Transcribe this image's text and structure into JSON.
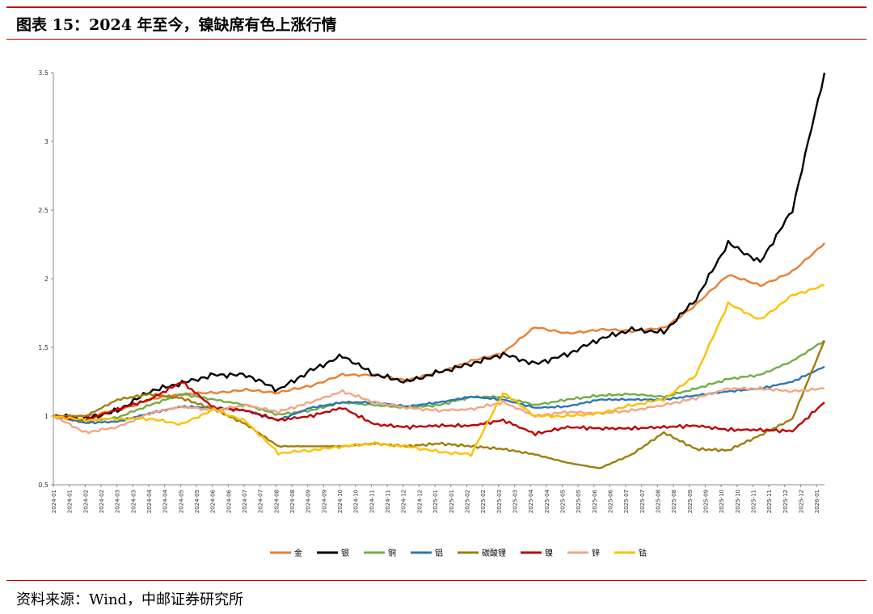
{
  "header": {
    "title": "图表 15：2024 年至今，镍缺席有色上涨行情"
  },
  "footer": {
    "source": "资料来源：Wind，中邮证券研究所"
  },
  "chart_data": {
    "type": "line",
    "title": "",
    "xlabel": "",
    "ylabel": "",
    "ylim": [
      0.5,
      3.5
    ],
    "yticks": [
      0.5,
      1,
      1.5,
      2,
      2.5,
      3,
      3.5
    ],
    "ytick_labels": [
      "0.5",
      "1",
      "1.5",
      "2",
      "2.5",
      "3",
      "3.5"
    ],
    "x_dates": [
      "2024-01",
      "2024-02",
      "2024-03",
      "2024-04",
      "2024-05",
      "2024-06",
      "2024-07",
      "2024-08",
      "2024-09",
      "2024-10",
      "2024-11",
      "2024-12",
      "2025-01",
      "2025-02",
      "2025-03",
      "2025-04",
      "2025-05",
      "2025-06",
      "2025-07",
      "2025-08",
      "2025-09",
      "2025-10",
      "2025-11",
      "2025-12",
      "2026-01"
    ],
    "xtick_labels": [
      "2024-01",
      "2024-01",
      "2024-02",
      "2024-02",
      "2024-03",
      "2024-03",
      "2024-04",
      "2024-04",
      "2024-05",
      "2024-05",
      "2024-06",
      "2024-06",
      "2024-07",
      "2024-07",
      "2024-08",
      "2024-08",
      "2024-09",
      "2024-09",
      "2024-10",
      "2024-10",
      "2024-11",
      "2024-11",
      "2024-12",
      "2024-12",
      "2025-01",
      "2025-01",
      "2025-02",
      "2025-02",
      "2025-03",
      "2025-03",
      "2025-04",
      "2025-04",
      "2025-05",
      "2025-05",
      "2025-06",
      "2025-06",
      "2025-07",
      "2025-07",
      "2025-08",
      "2025-08",
      "2025-09",
      "2025-09",
      "2025-10",
      "2025-10",
      "2025-11",
      "2025-11",
      "2025-12",
      "2025-12",
      "2026-01"
    ],
    "grid": false,
    "legend_position": "bottom",
    "series": [
      {
        "name": "金",
        "color": "#ED7D31",
        "values": [
          1.0,
          1.0,
          1.04,
          1.12,
          1.16,
          1.17,
          1.19,
          1.17,
          1.22,
          1.3,
          1.3,
          1.26,
          1.32,
          1.4,
          1.46,
          1.65,
          1.6,
          1.63,
          1.62,
          1.64,
          1.81,
          2.03,
          1.95,
          2.05,
          2.26
        ]
      },
      {
        "name": "银",
        "color": "#000000",
        "values": [
          1.0,
          0.98,
          1.04,
          1.18,
          1.24,
          1.3,
          1.3,
          1.19,
          1.33,
          1.44,
          1.3,
          1.25,
          1.32,
          1.38,
          1.45,
          1.38,
          1.45,
          1.56,
          1.63,
          1.61,
          1.85,
          2.26,
          2.12,
          2.5,
          3.5
        ]
      },
      {
        "name": "铜",
        "color": "#70AD47",
        "values": [
          1.0,
          0.96,
          0.99,
          1.08,
          1.16,
          1.12,
          1.08,
          1.01,
          1.04,
          1.1,
          1.08,
          1.06,
          1.08,
          1.14,
          1.14,
          1.08,
          1.12,
          1.15,
          1.16,
          1.14,
          1.2,
          1.27,
          1.3,
          1.4,
          1.55
        ]
      },
      {
        "name": "铝",
        "color": "#2E75B6",
        "values": [
          1.0,
          0.95,
          0.96,
          1.02,
          1.07,
          1.06,
          1.04,
          0.97,
          1.06,
          1.1,
          1.1,
          1.07,
          1.1,
          1.14,
          1.12,
          1.06,
          1.07,
          1.12,
          1.12,
          1.12,
          1.15,
          1.18,
          1.2,
          1.25,
          1.36
        ]
      },
      {
        "name": "碳酸锂",
        "color": "#A07D0C",
        "values": [
          1.0,
          1.0,
          1.12,
          1.16,
          1.13,
          1.05,
          0.94,
          0.78,
          0.78,
          0.78,
          0.8,
          0.78,
          0.8,
          0.78,
          0.76,
          0.72,
          0.66,
          0.62,
          0.72,
          0.88,
          0.76,
          0.75,
          0.86,
          0.98,
          1.55
        ]
      },
      {
        "name": "镍",
        "color": "#C00000",
        "values": [
          1.0,
          0.97,
          1.05,
          1.12,
          1.25,
          1.06,
          1.04,
          0.97,
          1.0,
          1.06,
          0.94,
          0.92,
          0.93,
          0.93,
          0.97,
          0.87,
          0.92,
          0.91,
          0.91,
          0.92,
          0.93,
          0.9,
          0.9,
          0.89,
          1.1
        ]
      },
      {
        "name": "锌",
        "color": "#F4A582",
        "values": [
          1.0,
          0.88,
          0.92,
          1.02,
          1.07,
          1.04,
          1.08,
          1.03,
          1.1,
          1.18,
          1.1,
          1.06,
          1.04,
          1.05,
          1.1,
          1.0,
          1.03,
          1.02,
          1.04,
          1.08,
          1.13,
          1.2,
          1.2,
          1.18,
          1.2
        ]
      },
      {
        "name": "钴",
        "color": "#FFC000",
        "values": [
          1.0,
          0.97,
          0.98,
          0.98,
          0.94,
          1.05,
          0.96,
          0.73,
          0.75,
          0.78,
          0.8,
          0.78,
          0.74,
          0.72,
          1.17,
          1.0,
          1.0,
          1.02,
          1.08,
          1.12,
          1.3,
          1.82,
          1.7,
          1.88,
          1.95
        ]
      }
    ]
  }
}
